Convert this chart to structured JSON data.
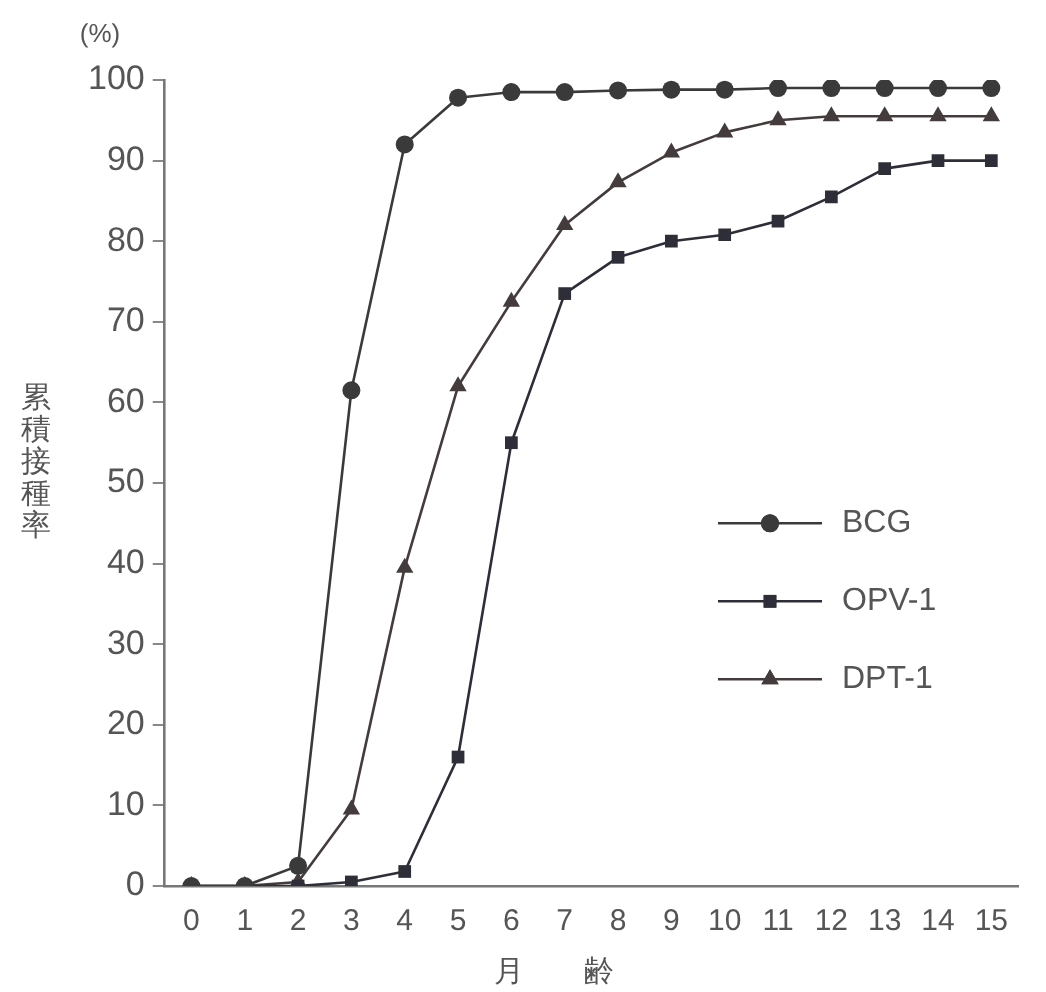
{
  "chart_data": {
    "type": "line",
    "ylabel": "累積接種率",
    "xlabel": "月　　齢",
    "annotations": [
      "(%)"
    ],
    "x": [
      0,
      1,
      2,
      3,
      4,
      5,
      6,
      7,
      8,
      9,
      10,
      11,
      12,
      13,
      14,
      15
    ],
    "xlim": [
      -0.5,
      15.5
    ],
    "xticks": [
      0,
      1,
      2,
      3,
      4,
      5,
      6,
      7,
      8,
      9,
      10,
      11,
      12,
      13,
      14,
      15
    ],
    "ylim": [
      0,
      100
    ],
    "yticks": [
      0,
      10,
      20,
      30,
      40,
      50,
      60,
      70,
      80,
      90,
      100
    ],
    "grid": false,
    "legend": "right",
    "line_style": "solid",
    "series": [
      {
        "name": "BCG",
        "color": "#3a3a3a",
        "marker": "circle",
        "values": [
          0,
          0,
          2.5,
          61.5,
          92,
          97.8,
          98.5,
          98.5,
          98.7,
          98.8,
          98.8,
          99,
          99,
          99,
          99,
          99
        ]
      },
      {
        "name": "OPV-1",
        "color": "#2e2e38",
        "marker": "square",
        "values": [
          0,
          0,
          0,
          0.5,
          1.8,
          16,
          55,
          73.5,
          78,
          80,
          80.8,
          82.5,
          85.5,
          89,
          90,
          90
        ]
      },
      {
        "name": "DPT-1",
        "color": "#443c3c",
        "marker": "triangle",
        "values": [
          0,
          0,
          0.5,
          9.5,
          39.5,
          62,
          72.5,
          82,
          87.3,
          91,
          93.5,
          95,
          95.5,
          95.5,
          95.5,
          95.5
        ]
      }
    ]
  }
}
